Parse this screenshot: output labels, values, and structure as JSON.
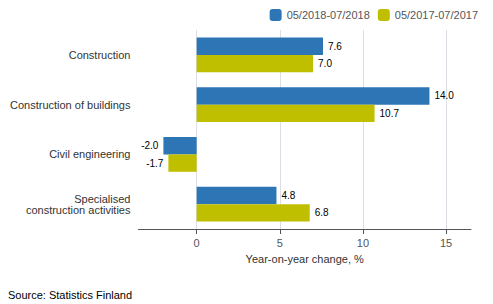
{
  "chart_data": {
    "type": "bar",
    "orientation": "horizontal",
    "categories": [
      "Construction",
      "Construction of buildings",
      "Civil engineering",
      "Specialised\nconstruction activities"
    ],
    "series": [
      {
        "name": "05/2018-07/2018",
        "color": "#2E75B6",
        "values": [
          7.6,
          14.0,
          -2.0,
          4.8
        ],
        "value_labels": [
          "7.6",
          "14.0",
          "-2.0",
          "4.8"
        ]
      },
      {
        "name": "05/2017-07/2017",
        "color": "#BFBF00",
        "values": [
          7.0,
          10.7,
          -1.7,
          6.8
        ],
        "value_labels": [
          "7.0",
          "10.7",
          "-1.7",
          "6.8"
        ]
      }
    ],
    "xlabel": "Year-on-year change, %",
    "xlim": [
      -3.5,
      16.5
    ],
    "xticks": [
      0,
      5,
      10,
      15
    ],
    "grid": true,
    "legend": "upper right",
    "data_labels": true,
    "source": "Source: Statistics Finland"
  }
}
